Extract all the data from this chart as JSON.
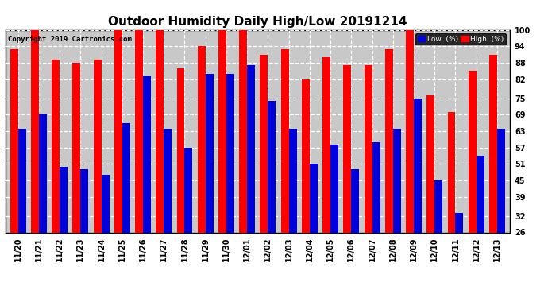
{
  "title": "Outdoor Humidity Daily High/Low 20191214",
  "copyright": "Copyright 2019 Cartronics.com",
  "categories": [
    "11/20",
    "11/21",
    "11/22",
    "11/23",
    "11/24",
    "11/25",
    "11/26",
    "11/27",
    "11/28",
    "11/29",
    "11/30",
    "12/01",
    "12/02",
    "12/03",
    "12/04",
    "12/05",
    "12/06",
    "12/07",
    "12/08",
    "12/09",
    "12/10",
    "12/11",
    "12/12",
    "12/13"
  ],
  "high": [
    93,
    100,
    89,
    88,
    89,
    100,
    100,
    100,
    86,
    94,
    100,
    100,
    91,
    93,
    82,
    90,
    87,
    87,
    93,
    100,
    76,
    70,
    85,
    91
  ],
  "low": [
    64,
    69,
    50,
    49,
    47,
    66,
    83,
    64,
    57,
    84,
    84,
    87,
    74,
    64,
    51,
    58,
    49,
    59,
    64,
    75,
    45,
    33,
    54,
    64
  ],
  "high_color": "#ff0000",
  "low_color": "#0000dd",
  "bg_color": "#ffffff",
  "plot_bg_color": "#c8c8c8",
  "ylim_min": 26,
  "ylim_max": 100,
  "yticks": [
    26,
    32,
    39,
    45,
    51,
    57,
    63,
    69,
    75,
    82,
    88,
    94,
    100
  ],
  "legend_low_label": "Low  (%)",
  "legend_high_label": "High  (%)",
  "title_fontsize": 11,
  "tick_fontsize": 7,
  "bar_width": 0.38
}
